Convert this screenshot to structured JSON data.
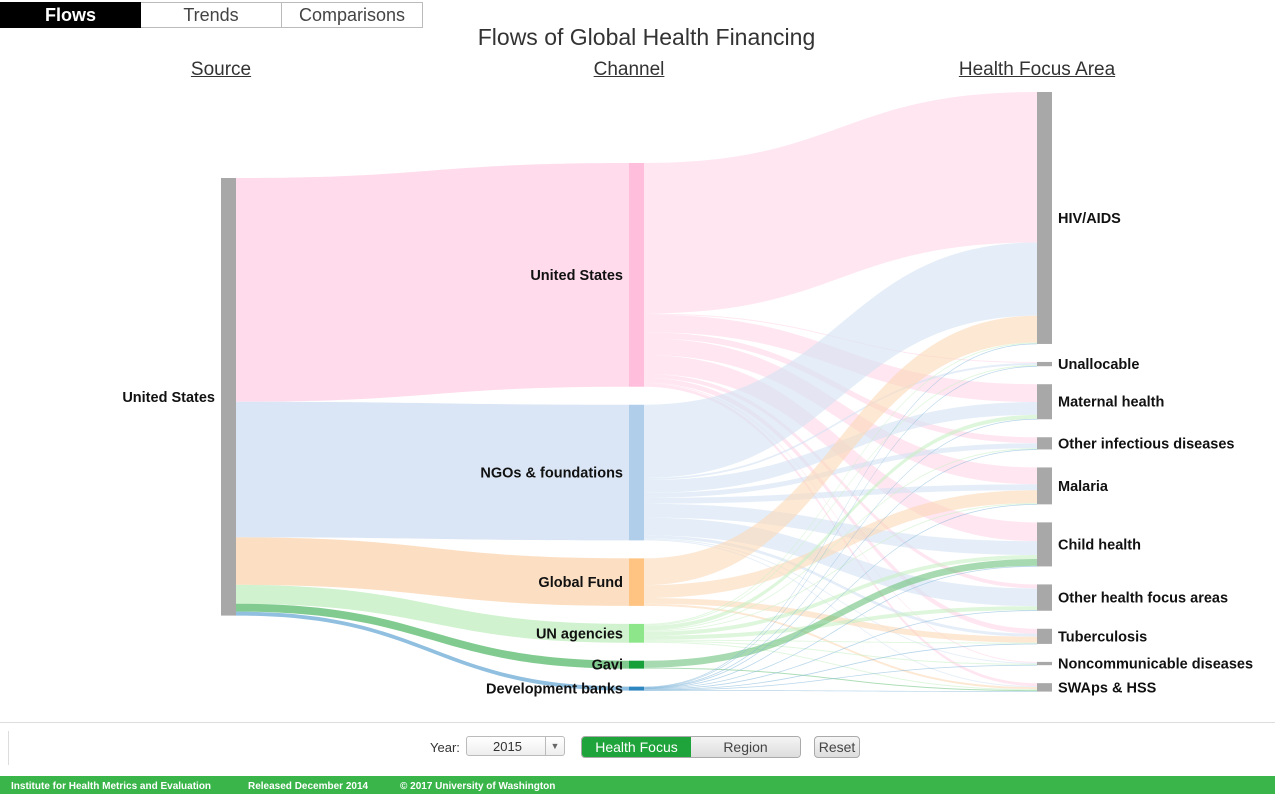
{
  "tabs": [
    {
      "label": "Flows",
      "active": true
    },
    {
      "label": "Trends",
      "active": false
    },
    {
      "label": "Comparisons",
      "active": false
    }
  ],
  "title": "Flows of Global Health Financing",
  "columns": {
    "source": "Source",
    "channel": "Channel",
    "focus": "Health Focus Area"
  },
  "controls": {
    "year_label": "Year:",
    "year_value": "2015",
    "health_focus_label": "Health Focus",
    "region_label": "Region",
    "reset_label": "Reset",
    "active_view": "Health Focus"
  },
  "footer": {
    "institute": "Institute for Health Metrics and Evaluation",
    "released": "Released December 2014",
    "copyright": "© 2017 University of Washington"
  },
  "chart_data": {
    "type": "sankey",
    "title": "Flows of Global Health Financing",
    "units": "relative share",
    "source_nodes": [
      {
        "name": "United States",
        "color": "#a8a8a8"
      }
    ],
    "channel_nodes": [
      {
        "name": "United States",
        "color": "#ffbfdc",
        "link_color": "#ffd5e8"
      },
      {
        "name": "NGOs & foundations",
        "color": "#b0cdea",
        "link_color": "#d4e2f3"
      },
      {
        "name": "Global Fund",
        "color": "#ffc382",
        "link_color": "#fcd9b8"
      },
      {
        "name": "UN agencies",
        "color": "#8ee68a",
        "link_color": "#c8f0c5"
      },
      {
        "name": "Gavi",
        "color": "#18a03a",
        "link_color": "#6cc27c"
      },
      {
        "name": "Development banks",
        "color": "#2e86c1",
        "link_color": "#7db4d9"
      }
    ],
    "focus_nodes": [
      {
        "name": "HIV/AIDS",
        "color": "#a8a8a8"
      },
      {
        "name": "Unallocable",
        "color": "#a8a8a8"
      },
      {
        "name": "Maternal health",
        "color": "#a8a8a8"
      },
      {
        "name": "Other infectious diseases",
        "color": "#a8a8a8"
      },
      {
        "name": "Malaria",
        "color": "#a8a8a8"
      },
      {
        "name": "Child health",
        "color": "#a8a8a8"
      },
      {
        "name": "Other health focus areas",
        "color": "#a8a8a8"
      },
      {
        "name": "Tuberculosis",
        "color": "#a8a8a8"
      },
      {
        "name": "Noncommunicable diseases",
        "color": "#a8a8a8"
      },
      {
        "name": "SWAps & HSS",
        "color": "#a8a8a8"
      }
    ],
    "source_to_channel": [
      {
        "source": "United States",
        "channel": "United States",
        "value": 226
      },
      {
        "source": "United States",
        "channel": "NGOs & foundations",
        "value": 137
      },
      {
        "source": "United States",
        "channel": "Global Fund",
        "value": 48
      },
      {
        "source": "United States",
        "channel": "UN agencies",
        "value": 19
      },
      {
        "source": "United States",
        "channel": "Gavi",
        "value": 8
      },
      {
        "source": "United States",
        "channel": "Development banks",
        "value": 4
      }
    ],
    "channel_to_focus": [
      {
        "channel": "United States",
        "focus": "HIV/AIDS",
        "value": 152
      },
      {
        "channel": "United States",
        "focus": "Unallocable",
        "value": 1
      },
      {
        "channel": "United States",
        "focus": "Maternal health",
        "value": 18
      },
      {
        "channel": "United States",
        "focus": "Other infectious diseases",
        "value": 6
      },
      {
        "channel": "United States",
        "focus": "Malaria",
        "value": 17
      },
      {
        "channel": "United States",
        "focus": "Child health",
        "value": 19
      },
      {
        "channel": "United States",
        "focus": "Other health focus areas",
        "value": 4
      },
      {
        "channel": "United States",
        "focus": "Tuberculosis",
        "value": 5
      },
      {
        "channel": "United States",
        "focus": "Noncommunicable diseases",
        "value": 1
      },
      {
        "channel": "United States",
        "focus": "SWAps & HSS",
        "value": 3
      },
      {
        "channel": "NGOs & foundations",
        "focus": "HIV/AIDS",
        "value": 74
      },
      {
        "channel": "NGOs & foundations",
        "focus": "Unallocable",
        "value": 2
      },
      {
        "channel": "NGOs & foundations",
        "focus": "Maternal health",
        "value": 13
      },
      {
        "channel": "NGOs & foundations",
        "focus": "Other infectious diseases",
        "value": 5
      },
      {
        "channel": "NGOs & foundations",
        "focus": "Malaria",
        "value": 6
      },
      {
        "channel": "NGOs & foundations",
        "focus": "Child health",
        "value": 14
      },
      {
        "channel": "NGOs & foundations",
        "focus": "Other health focus areas",
        "value": 18
      },
      {
        "channel": "NGOs & foundations",
        "focus": "Tuberculosis",
        "value": 3
      },
      {
        "channel": "NGOs & foundations",
        "focus": "Noncommunicable diseases",
        "value": 1
      },
      {
        "channel": "NGOs & foundations",
        "focus": "SWAps & HSS",
        "value": 1
      },
      {
        "channel": "Global Fund",
        "focus": "HIV/AIDS",
        "value": 27
      },
      {
        "channel": "Global Fund",
        "focus": "Malaria",
        "value": 13
      },
      {
        "channel": "Global Fund",
        "focus": "Tuberculosis",
        "value": 6
      },
      {
        "channel": "Global Fund",
        "focus": "SWAps & HSS",
        "value": 2
      },
      {
        "channel": "UN agencies",
        "focus": "HIV/AIDS",
        "value": 1
      },
      {
        "channel": "UN agencies",
        "focus": "Unallocable",
        "value": 1
      },
      {
        "channel": "UN agencies",
        "focus": "Maternal health",
        "value": 4
      },
      {
        "channel": "UN agencies",
        "focus": "Other infectious diseases",
        "value": 1
      },
      {
        "channel": "UN agencies",
        "focus": "Malaria",
        "value": 1
      },
      {
        "channel": "UN agencies",
        "focus": "Child health",
        "value": 4
      },
      {
        "channel": "UN agencies",
        "focus": "Other health focus areas",
        "value": 4
      },
      {
        "channel": "UN agencies",
        "focus": "Tuberculosis",
        "value": 1
      },
      {
        "channel": "UN agencies",
        "focus": "Noncommunicable diseases",
        "value": 1
      },
      {
        "channel": "UN agencies",
        "focus": "SWAps & HSS",
        "value": 1
      },
      {
        "channel": "Gavi",
        "focus": "Child health",
        "value": 7
      },
      {
        "channel": "Gavi",
        "focus": "SWAps & HSS",
        "value": 1
      },
      {
        "channel": "Development banks",
        "focus": "HIV/AIDS",
        "value": 0.5
      },
      {
        "channel": "Development banks",
        "focus": "Unallocable",
        "value": 0.3
      },
      {
        "channel": "Development banks",
        "focus": "Maternal health",
        "value": 0.4
      },
      {
        "channel": "Development banks",
        "focus": "Other infectious diseases",
        "value": 0.3
      },
      {
        "channel": "Development banks",
        "focus": "Malaria",
        "value": 0.3
      },
      {
        "channel": "Development banks",
        "focus": "Child health",
        "value": 0.5
      },
      {
        "channel": "Development banks",
        "focus": "Other health focus areas",
        "value": 0.6
      },
      {
        "channel": "Development banks",
        "focus": "Tuberculosis",
        "value": 0.3
      },
      {
        "channel": "Development banks",
        "focus": "Noncommunicable diseases",
        "value": 0.3
      },
      {
        "channel": "Development banks",
        "focus": "SWAps & HSS",
        "value": 0.5
      }
    ]
  }
}
